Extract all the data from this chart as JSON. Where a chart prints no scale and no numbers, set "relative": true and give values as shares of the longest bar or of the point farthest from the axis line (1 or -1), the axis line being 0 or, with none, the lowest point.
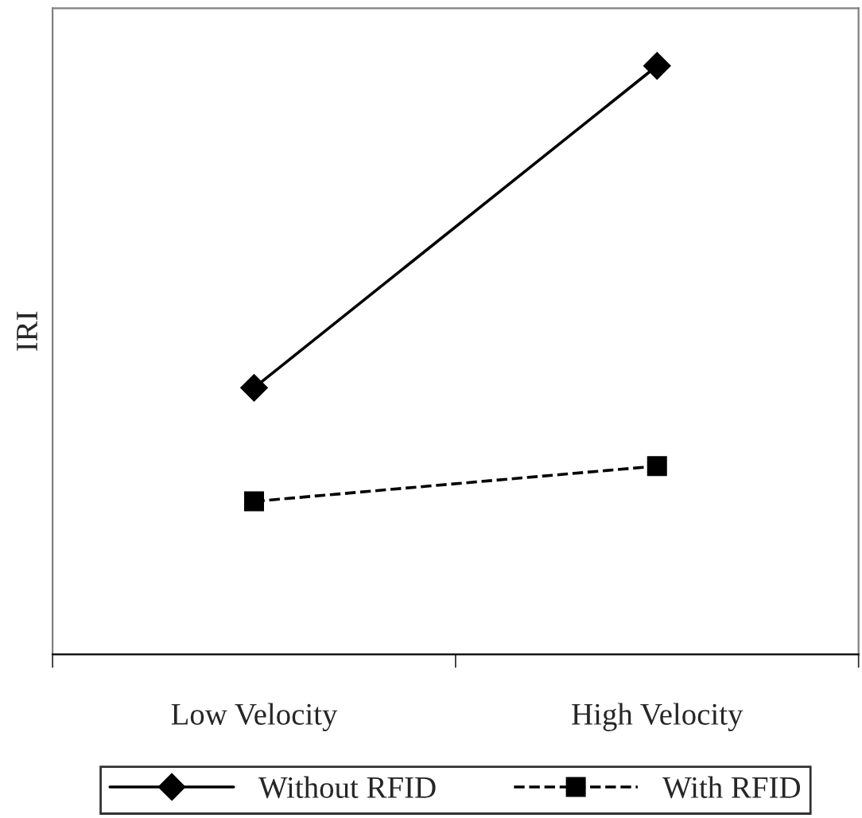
{
  "chart_data": {
    "type": "line",
    "ylabel": "IRI",
    "categories": [
      "Low Velocity",
      "High Velocity"
    ],
    "relative": true,
    "legend": "bottom",
    "grid": false,
    "series": [
      {
        "name": "Without RFID",
        "color": "#000000",
        "values": [
          0.453,
          1
        ],
        "marker": "diamond",
        "line_style": "solid"
      },
      {
        "name": "With RFID",
        "color": "#000000",
        "values": [
          0.26,
          0.32
        ],
        "marker": "square",
        "line_style": "dashed"
      }
    ]
  }
}
